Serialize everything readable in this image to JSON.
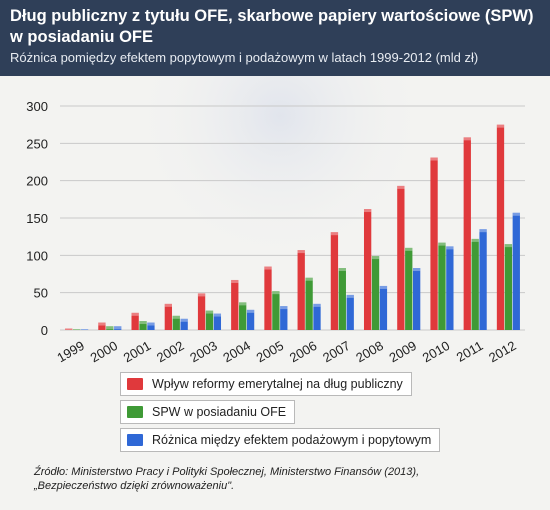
{
  "header": {
    "title": "Dług publiczny z tytułu OFE, skarbowe papiery wartościowe (SPW) w posiadaniu OFE",
    "subtitle": "Różnica pomiędzy efektem popytowym i podażowym w latach 1999-2012 (mld zł)"
  },
  "chart_data": {
    "type": "bar",
    "categories": [
      "1999",
      "2000",
      "2001",
      "2002",
      "2003",
      "2004",
      "2005",
      "2006",
      "2007",
      "2008",
      "2009",
      "2010",
      "2011",
      "2012"
    ],
    "series": [
      {
        "name": "Wpływ reformy emerytalnej na dług publiczny",
        "color": "#e0393c",
        "values": [
          2,
          10,
          23,
          35,
          49,
          67,
          85,
          107,
          131,
          162,
          193,
          231,
          258,
          275
        ]
      },
      {
        "name": "SPW w posiadaniu OFE",
        "color": "#3f9a36",
        "values": [
          1,
          5,
          12,
          19,
          26,
          37,
          52,
          70,
          83,
          99,
          110,
          117,
          122,
          115
        ]
      },
      {
        "name": "Różnica między efektem podażowym i popytowym",
        "color": "#2f68d6",
        "values": [
          1,
          5,
          10,
          15,
          22,
          27,
          32,
          35,
          47,
          59,
          83,
          112,
          135,
          157
        ]
      }
    ],
    "yticks": [
      0,
      50,
      100,
      150,
      200,
      250,
      300
    ],
    "ylim": [
      0,
      300
    ],
    "grid": true,
    "legend_position": "bottom"
  },
  "source": {
    "line1": "Źródło: Ministerstwo Pracy i Polityki Społecznej, Ministerstwo Finansów (2013),",
    "line2": "„Bezpieczeństwo dzięki zrównoważeniu\"."
  }
}
